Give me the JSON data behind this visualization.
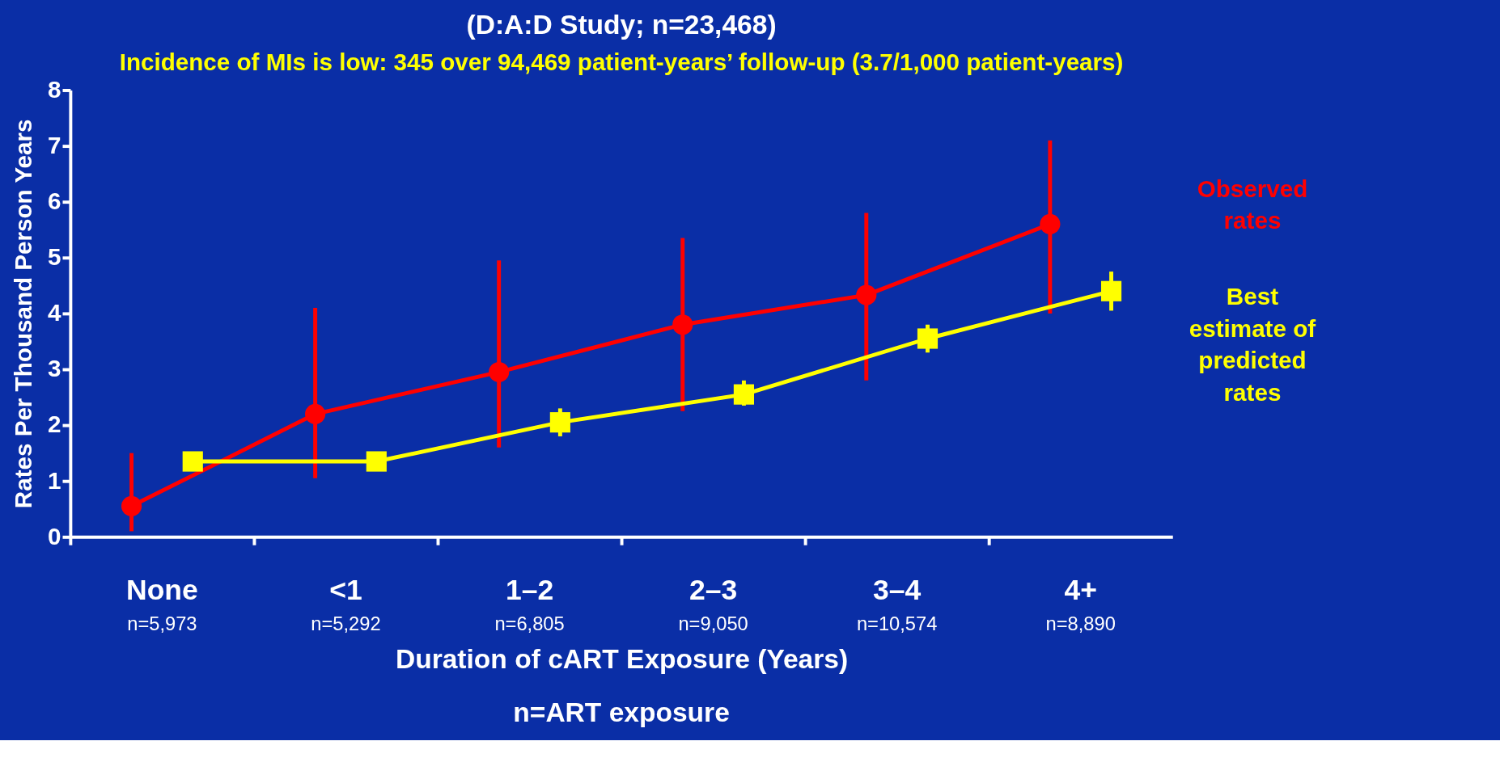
{
  "chart_data": {
    "type": "line",
    "title": "(D:A:D Study; n=23,468)",
    "subtitle": "Incidence of MIs is low: 345 over 94,469 patient-years’ follow-up (3.7/1,000 patient-years)",
    "xlabel": "Duration of cART Exposure (Years)",
    "ylabel": "Rates Per Thousand Person Years",
    "categories": [
      "None",
      "<1",
      "1–2",
      "2–3",
      "3–4",
      "4+"
    ],
    "annotations": [
      "n=5,973",
      "n=5,292",
      "n=6,805",
      "n=9,050",
      "n=10,574",
      "n=8,890",
      "n=ART exposure"
    ],
    "series": [
      {
        "name": "Observed rates",
        "color": "#ff0000",
        "marker": "circle",
        "values": [
          0.55,
          2.2,
          2.95,
          3.8,
          4.33,
          5.6
        ],
        "errors": [
          [
            0.1,
            1.5
          ],
          [
            1.05,
            4.1
          ],
          [
            1.6,
            4.95
          ],
          [
            2.25,
            5.35
          ],
          [
            2.8,
            5.8
          ],
          [
            4.0,
            7.1
          ]
        ]
      },
      {
        "name": "Best estimate of predicted rates",
        "color": "#ffff00",
        "marker": "square",
        "values": [
          1.35,
          1.35,
          2.05,
          2.55,
          3.55,
          4.4
        ],
        "errors": [
          null,
          null,
          [
            1.8,
            2.3
          ],
          [
            2.35,
            2.8
          ],
          [
            3.3,
            3.8
          ],
          [
            4.05,
            4.75
          ]
        ]
      }
    ],
    "ylim": [
      0,
      8
    ],
    "yticks": [
      0,
      1,
      2,
      3,
      4,
      5,
      6,
      7,
      8
    ],
    "grid": false,
    "legend": false
  }
}
